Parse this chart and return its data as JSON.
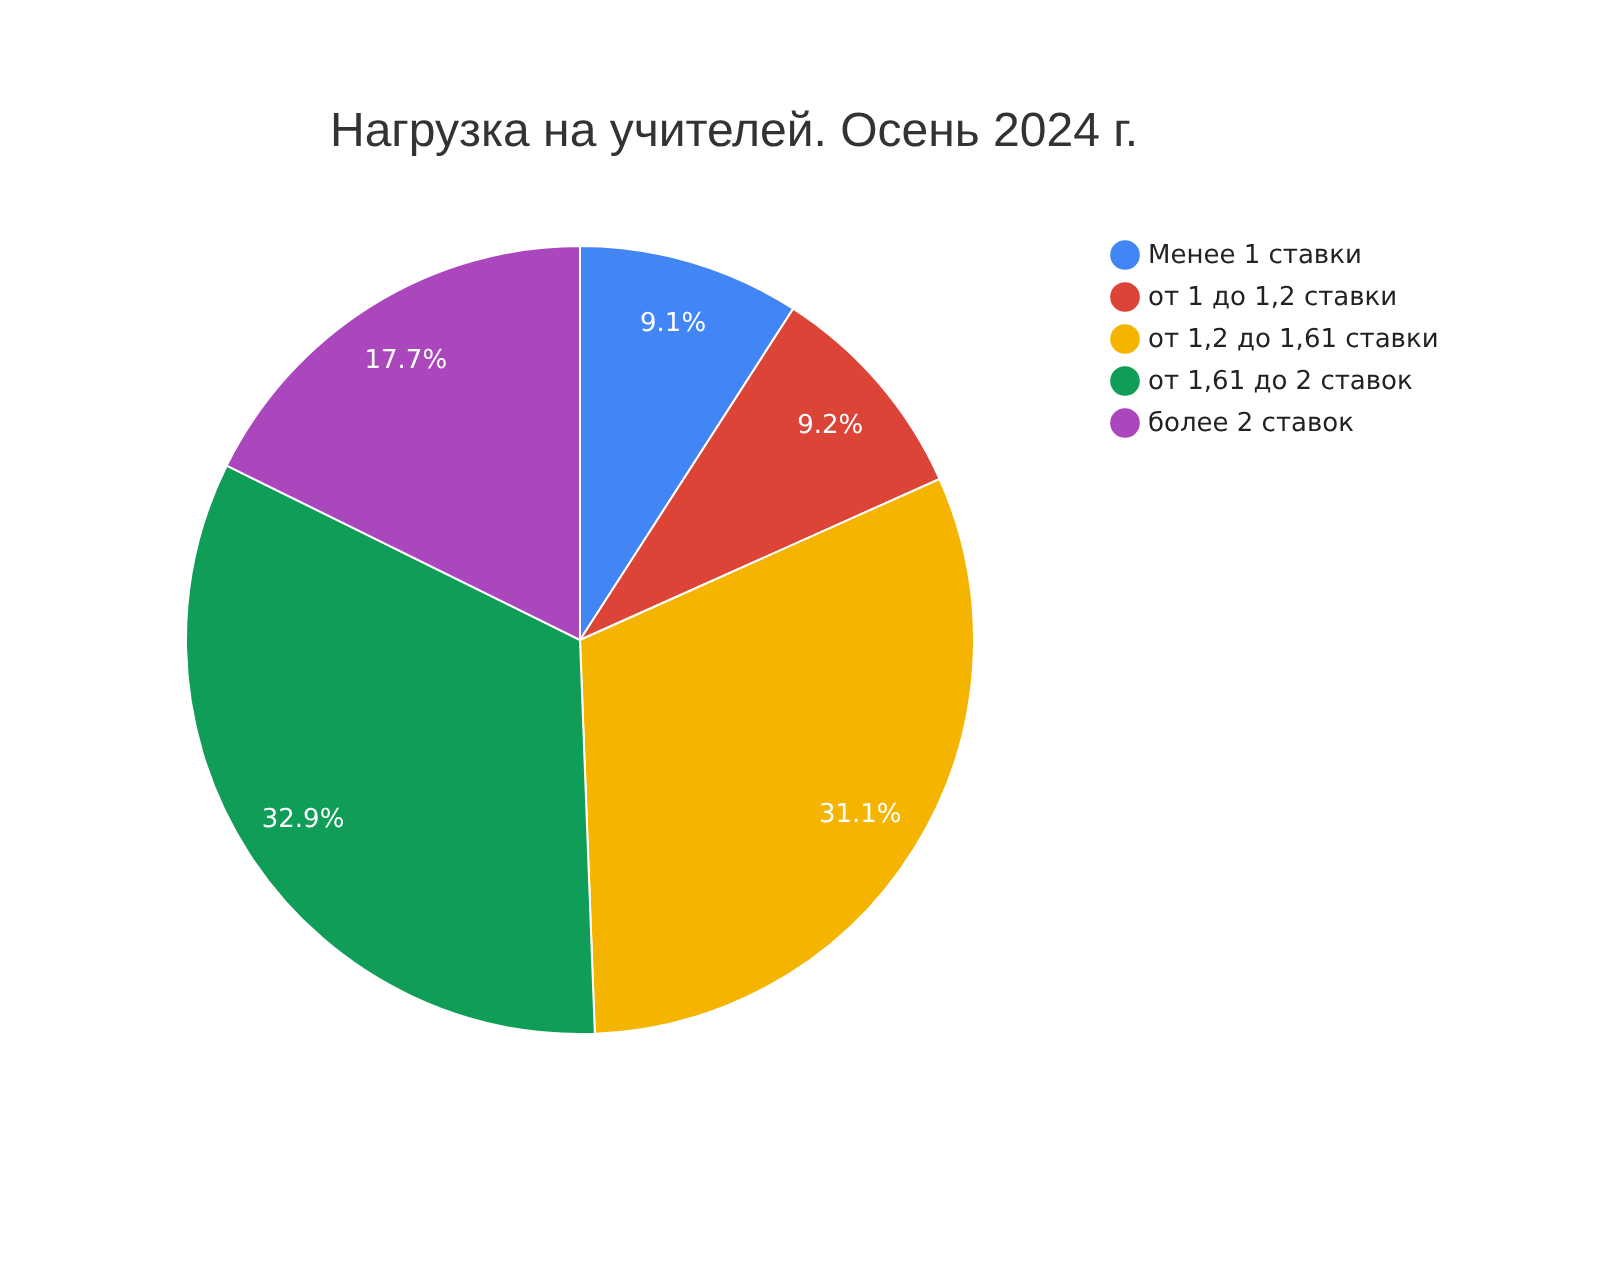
{
  "chart_data": {
    "type": "pie",
    "title": "Нагрузка на учителей. Осень 2024 г.",
    "categories": [
      "Менее 1 ставки",
      "от 1 до 1,2 ставки",
      "от 1,2 до 1,61 ставки",
      "от 1,61 до 2 ставок",
      "более 2 ставок"
    ],
    "values": [
      9.1,
      9.2,
      31.1,
      32.9,
      17.7
    ],
    "colors": [
      "#4285f4",
      "#db4437",
      "#f4b400",
      "#0f9d58",
      "#ab47bc"
    ],
    "value_labels": [
      "9.1%",
      "9.2%",
      "31.1%",
      "32.9%",
      "17.7%"
    ],
    "legend": "top right"
  }
}
